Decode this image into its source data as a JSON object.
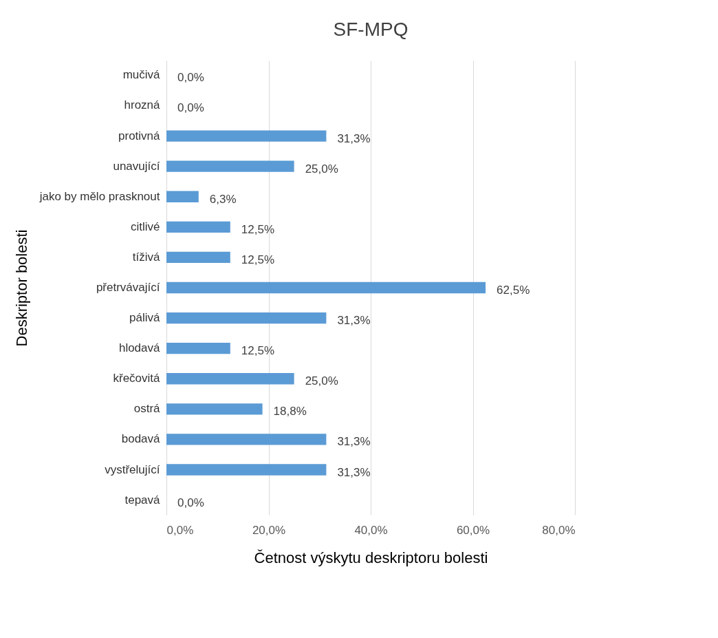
{
  "chart_data": {
    "type": "bar",
    "orientation": "horizontal",
    "title": "SF-MPQ",
    "xlabel": "Četnost výskytu deskriptoru bolesti",
    "ylabel": "Deskriptor bolesti",
    "categories": [
      "mučivá",
      "hrozná",
      "protivná",
      "unavující",
      "jako by mělo prasknout",
      "citlivé",
      "tíživá",
      "přetrvávající",
      "pálivá",
      "hlodavá",
      "křečovitá",
      "ostrá",
      "bodavá",
      "vystřelující",
      "tepavá"
    ],
    "values": [
      0,
      0,
      31.3,
      25.0,
      6.3,
      12.5,
      12.5,
      62.5,
      31.3,
      12.5,
      25.0,
      18.8,
      31.3,
      31.3,
      0
    ],
    "value_labels": [
      "0,0%",
      "0,0%",
      "31,3%",
      "25,0%",
      "6,3%",
      "12,5%",
      "12,5%",
      "62,5%",
      "31,3%",
      "12,5%",
      "25,0%",
      "18,8%",
      "31,3%",
      "31,3%",
      "0,0%"
    ],
    "color": "#5b9bd5",
    "xlim": [
      0,
      80
    ],
    "xticks": [
      {
        "value": 0,
        "label": "0,0%"
      },
      {
        "value": 20,
        "label": "20,0%"
      },
      {
        "value": 40,
        "label": "40,0%"
      },
      {
        "value": 60,
        "label": "60,0%"
      },
      {
        "value": 80,
        "label": "80,0%"
      }
    ],
    "grid": "x"
  }
}
